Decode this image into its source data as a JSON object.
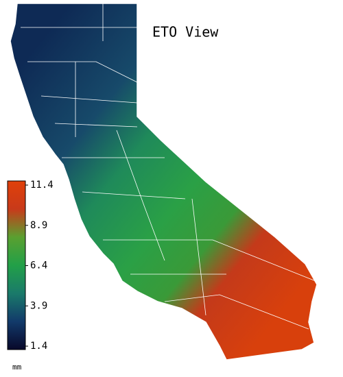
{
  "title": "ETO View",
  "legend": {
    "unit": "mm",
    "range": [
      1.4,
      11.4
    ],
    "ticks": [
      11.4,
      8.9,
      6.4,
      3.9,
      1.4
    ],
    "colors": [
      "#08082a",
      "#123a6a",
      "#1a7a6a",
      "#22a048",
      "#5aa030",
      "#c83a1a",
      "#e0400a"
    ]
  }
}
